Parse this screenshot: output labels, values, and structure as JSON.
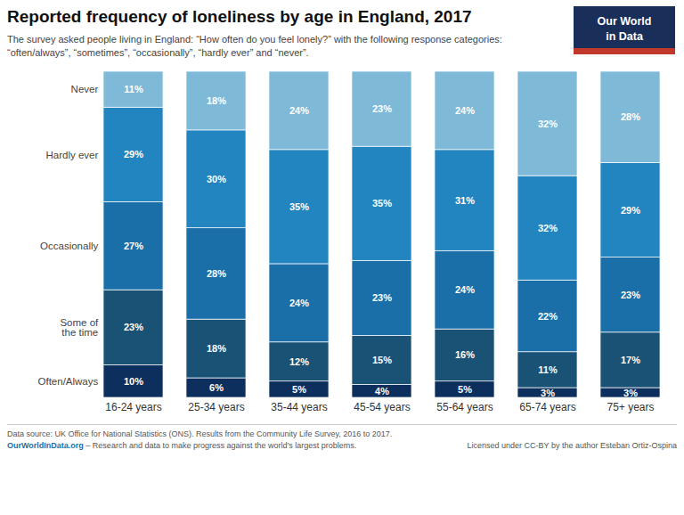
{
  "chart_data": {
    "type": "bar",
    "stacked": true,
    "data_labels": true,
    "tick_labels": "x",
    "grid": false,
    "title": "Reported frequency of loneliness by age in England, 2017",
    "subtitle": "The survey asked people living in England: “How often do you feel lonely?” with the following response categories:\n“often/always”, “sometimes”, “occasionally”, “hardly ever” and “never”.",
    "categories": [
      "16-24 years",
      "25-34 years",
      "35-44 years",
      "45-54 years",
      "55-64 years",
      "65-74 years",
      "75+ years"
    ],
    "series": [
      {
        "name": "Often/Always",
        "color": "#0d2f5e",
        "values": [
          10,
          6,
          5,
          4,
          5,
          3,
          3
        ],
        "value_labels": [
          "10%",
          "6%",
          "5%",
          "4%",
          "5%",
          "3%",
          "3%"
        ]
      },
      {
        "name": "Some of\nthe time",
        "color": "#1a5276",
        "values": [
          23,
          18,
          12,
          15,
          16,
          11,
          17
        ],
        "value_labels": [
          "23%",
          "18%",
          "12%",
          "15%",
          "16%",
          "11%",
          "17%"
        ]
      },
      {
        "name": "Occasionally",
        "color": "#1a6fa8",
        "values": [
          27,
          28,
          24,
          23,
          24,
          22,
          23
        ],
        "value_labels": [
          "27%",
          "28%",
          "24%",
          "23%",
          "24%",
          "22%",
          "23%"
        ]
      },
      {
        "name": "Hardly ever",
        "color": "#2285c0",
        "values": [
          29,
          30,
          35,
          35,
          31,
          32,
          29
        ],
        "value_labels": [
          "29%",
          "30%",
          "35%",
          "35%",
          "31%",
          "32%",
          "29%"
        ]
      },
      {
        "name": "Never",
        "color": "#7fb9d8",
        "values": [
          11,
          18,
          24,
          23,
          24,
          32,
          28
        ],
        "value_labels": [
          "11%",
          "18%",
          "24%",
          "23%",
          "24%",
          "32%",
          "28%"
        ]
      }
    ],
    "ylim": [
      0,
      100
    ],
    "yticks": [],
    "annotations": [
      "Our World",
      "in Data",
      "Data source: UK Office for National Statistics (ONS). Results from the Community Life Survey, 2016 to 2017.",
      "OurWorldInData.org",
      "– Research and data to make progress against the world’s largest problems.",
      "Licensed under CC-BY by the author Esteban Ortiz-Ospina"
    ]
  }
}
